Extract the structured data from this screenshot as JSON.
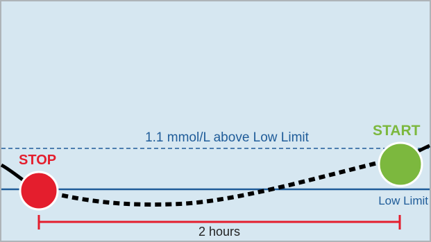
{
  "diagram": {
    "threshold_label": "1.1 mmol/L above Low Limit",
    "low_limit_label": "Low Limit",
    "stop_label": "STOP",
    "start_label": "START",
    "duration_label": "2 hours"
  },
  "colors": {
    "background": "#d6e7f1",
    "frame": "#aeb4b8",
    "limit_line": "#1f5c99",
    "curve": "#000000",
    "stop": "#e41e2d",
    "start": "#7cb83e",
    "duration_bracket": "#e41e2d",
    "text": "#1f5c99"
  }
}
